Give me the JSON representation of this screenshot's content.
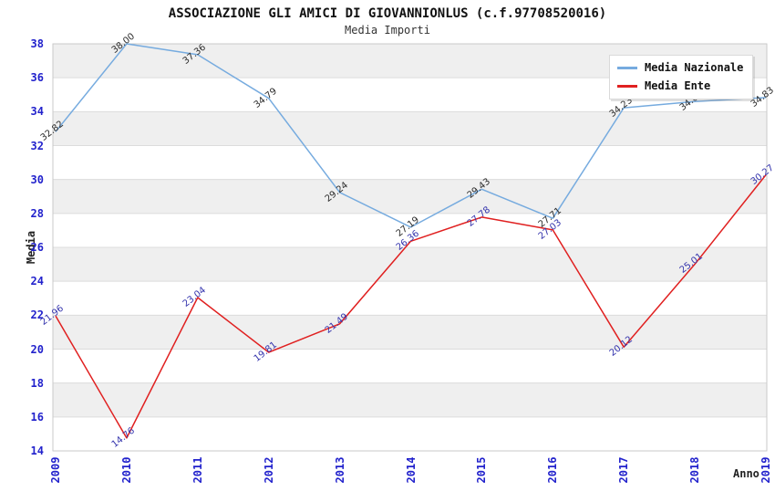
{
  "chart_data": {
    "type": "line",
    "title": "ASSOCIAZIONE GLI AMICI DI GIOVANNIONLUS (c.f.97708520016)",
    "subtitle": "Media Importi",
    "xlabel": "Anno",
    "ylabel": "Media",
    "x": [
      "2009",
      "2010",
      "2011",
      "2012",
      "2013",
      "2014",
      "2015",
      "2016",
      "2017",
      "2018",
      "2019"
    ],
    "series": [
      {
        "name": "Media Nazionale",
        "color": "#76ABDF",
        "label_color": "#2b2b2b",
        "values": [
          32.82,
          38.0,
          37.36,
          34.79,
          29.24,
          27.19,
          29.43,
          27.71,
          34.23,
          34.6,
          34.83
        ],
        "labels": [
          "32.82",
          "38.00",
          "37.36",
          "34.79",
          "29.24",
          "27.19",
          "29.43",
          "27.71",
          "34.23",
          "34.60",
          "34.83"
        ]
      },
      {
        "name": "Media Ente",
        "color": "#E02020",
        "label_color": "#3434ad",
        "values": [
          21.96,
          14.76,
          23.04,
          19.81,
          21.49,
          26.36,
          27.78,
          27.03,
          20.12,
          25.01,
          30.27
        ],
        "labels": [
          "21.96",
          "14.76",
          "23.04",
          "19.81",
          "21.49",
          "26.36",
          "27.78",
          "27.03",
          "20.12",
          "25.01",
          "30.27"
        ]
      }
    ],
    "ylim": [
      14,
      38
    ],
    "y_ticks": [
      38,
      36,
      34,
      32,
      30,
      28,
      26,
      24,
      22,
      20,
      18,
      16,
      14
    ],
    "grid": true,
    "legend_position": "top-right",
    "style": {
      "band_gray": "#efefef",
      "band_white": "#ffffff",
      "grid_line": "#dcdcdc",
      "plot_border": "#c9c9c9",
      "tick_color": "#2222cc",
      "axis_title_color": "#222222"
    }
  }
}
